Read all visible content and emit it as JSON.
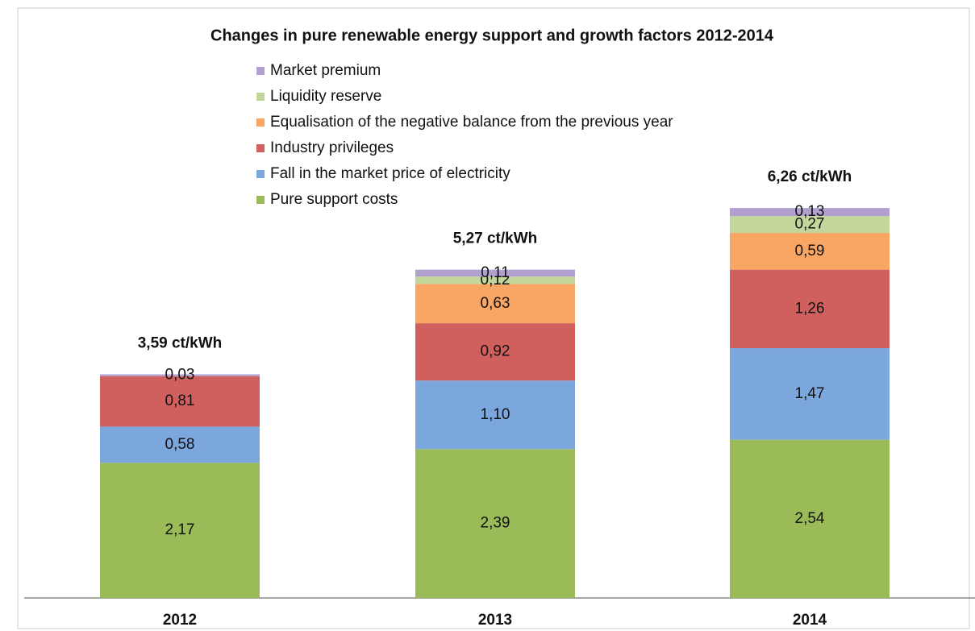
{
  "chart_data": {
    "type": "stacked-bar",
    "title": "Changes in pure renewable energy support and growth factors 2012-2014",
    "categories": [
      "2012",
      "2013",
      "2014"
    ],
    "series": [
      {
        "name": "Pure support costs",
        "color": "#9bbb59",
        "values": [
          2.17,
          2.39,
          2.54
        ],
        "value_labels": [
          "2,17",
          "2,39",
          "2,54"
        ]
      },
      {
        "name": "Fall in the market price of electricity",
        "color": "#7ba7dd",
        "values": [
          0.58,
          1.1,
          1.47
        ],
        "value_labels": [
          "0,58",
          "1,10",
          "1,47"
        ]
      },
      {
        "name": "Industry privileges",
        "color": "#d0605e",
        "values": [
          0.81,
          0.92,
          1.26
        ],
        "value_labels": [
          "0,81",
          "0,92",
          "1,26"
        ]
      },
      {
        "name": "Equalisation of the negative balance from the previous year",
        "color": "#f9a665",
        "values": [
          null,
          0.63,
          0.59
        ],
        "value_labels": [
          null,
          "0,63",
          "0,59"
        ]
      },
      {
        "name": "Liquidity reserve",
        "color": "#c3d69b",
        "values": [
          null,
          0.12,
          0.27
        ],
        "value_labels": [
          null,
          "0,12",
          "0,27"
        ]
      },
      {
        "name": "Market premium",
        "color": "#b1a0cf",
        "values": [
          0.03,
          0.11,
          0.13
        ],
        "value_labels": [
          "0,03",
          "0,11",
          "0,13"
        ]
      }
    ],
    "totals": [
      3.59,
      5.27,
      6.26
    ],
    "total_labels": [
      "3,59 ct/kWh",
      "5,27 ct/kWh",
      "6,26 ct/kWh"
    ]
  }
}
